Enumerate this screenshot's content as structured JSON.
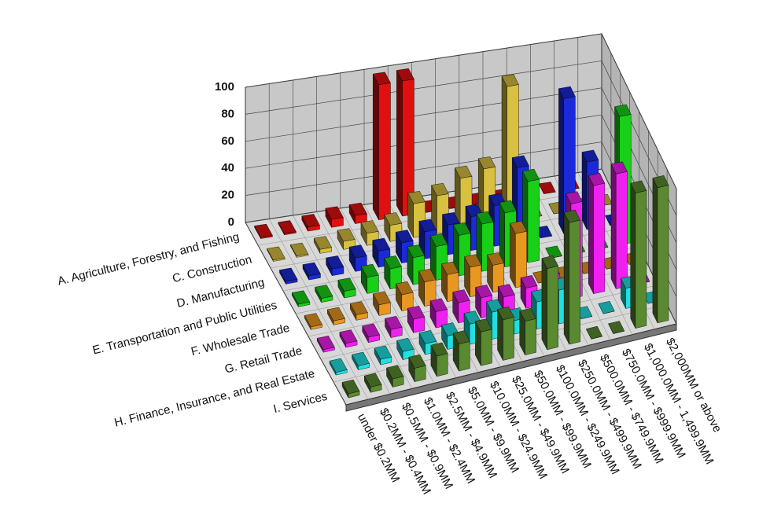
{
  "chart_data": {
    "type": "bar3d",
    "categories": [
      "under $0.2MM",
      "$0.2MM - $0.4MM",
      "$0.5MM - $0.9MM",
      "$1.0MM - $2.4MM",
      "$2.5MM - $4.9MM",
      "$5.0MM - $9.9MM",
      "$10.0MM - $24.9MM",
      "$25.0MM - $49.9MM",
      "$50.0MM - $99.9MM",
      "$100.0MM - $249.9MM",
      "$250.0MM - $499.9MM",
      "$500.0MM - $749.9MM",
      "$750.0MM - $999.9MM",
      "$1,000.0MM - 1,499.9MM",
      "$2,000MM or above"
    ],
    "series": [
      {
        "name": "A. Agriculture, Forestry, and Fishing",
        "color": "#e01010",
        "values": [
          1,
          1,
          3,
          6,
          6,
          100,
          100,
          0,
          0,
          0,
          0,
          0,
          0,
          0,
          0
        ]
      },
      {
        "name": "C. Construction",
        "color": "#d8c040",
        "values": [
          1,
          1,
          3,
          6,
          9,
          12,
          25,
          28,
          38,
          42,
          100,
          0,
          0,
          0,
          0
        ]
      },
      {
        "name": "D. Manufacturing",
        "color": "#1a2ad8",
        "values": [
          2,
          3,
          5,
          10,
          12,
          15,
          20,
          22,
          25,
          30,
          55,
          0,
          100,
          50,
          0
        ]
      },
      {
        "name": "E. Transportation and Public Utilities",
        "color": "#18d018",
        "values": [
          2,
          3,
          5,
          12,
          15,
          20,
          25,
          30,
          35,
          40,
          60,
          0,
          0,
          0,
          95
        ]
      },
      {
        "name": "F. Wholesale Trade",
        "color": "#e89820",
        "values": [
          2,
          3,
          4,
          8,
          12,
          18,
          20,
          22,
          20,
          40,
          0,
          0,
          0,
          0,
          0
        ]
      },
      {
        "name": "G. Retail Trade",
        "color": "#f020f0",
        "values": [
          2,
          3,
          4,
          6,
          10,
          12,
          15,
          15,
          12,
          15,
          20,
          70,
          80,
          85,
          0
        ]
      },
      {
        "name": "H. Finance, Insurance, and Real Estate",
        "color": "#20e0e0",
        "values": [
          2,
          3,
          4,
          6,
          8,
          10,
          15,
          20,
          10,
          20,
          25,
          0,
          0,
          15,
          0
        ]
      },
      {
        "name": "I. Services",
        "color": "#5a8a30",
        "values": [
          3,
          4,
          6,
          10,
          15,
          20,
          25,
          30,
          25,
          60,
          90,
          0,
          0,
          100,
          100
        ]
      }
    ],
    "ylim": [
      0,
      100
    ],
    "yticks": [
      0,
      20,
      40,
      60,
      80,
      100
    ],
    "grid": true
  }
}
